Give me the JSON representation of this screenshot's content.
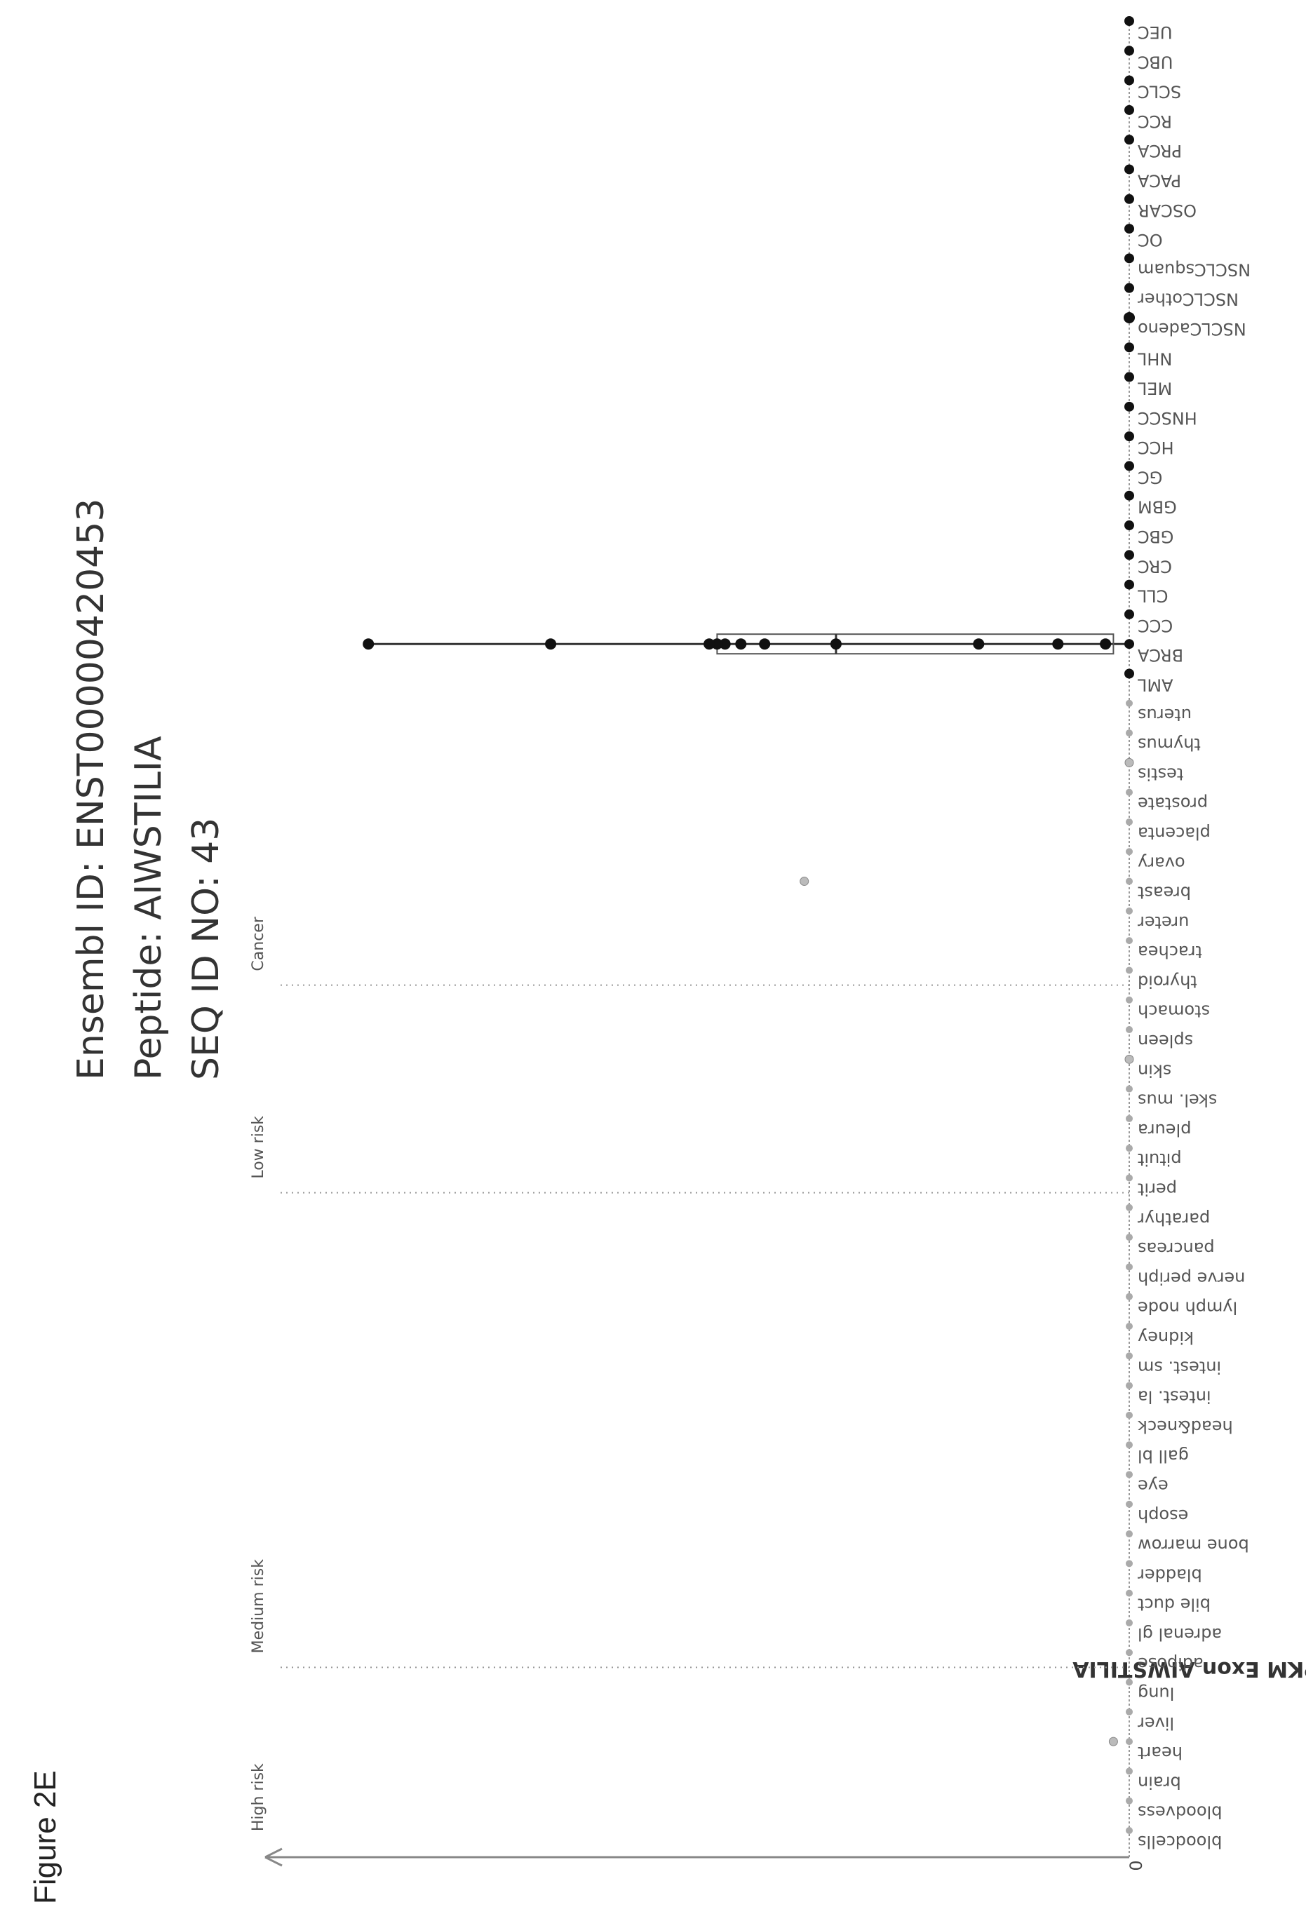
{
  "figure_label": "Figure 2E",
  "header": {
    "line1": "Ensembl ID: ENST00000420453",
    "line2": "Peptide: AIWSTILIA",
    "line3": "SEQ ID NO: 43"
  },
  "chart_data": {
    "type": "scatter",
    "ylabel": "Relative FPKM Exon AIWSTILIA",
    "y_origin_label": "0",
    "regions": [
      {
        "label": "High risk",
        "categories": 6
      },
      {
        "label": "Medium risk",
        "categories": 16
      },
      {
        "label": "Low risk",
        "categories": 7
      },
      {
        "label": "Cancer",
        "categories": 20
      }
    ],
    "categories": [
      "bloodcells",
      "bloodvess",
      "brain",
      "heart",
      "liver",
      "lung",
      "adipose",
      "adrenal gl",
      "bile duct",
      "bladder",
      "bone marrow",
      "esoph",
      "eye",
      "gall bl",
      "head&neck",
      "intest. la",
      "intest. sm",
      "kidney",
      "lymph node",
      "nerve periph",
      "pancreas",
      "parathyr",
      "perit",
      "pituit",
      "pleura",
      "skel. mus",
      "skin",
      "spleen",
      "stomach",
      "thyroid",
      "trachea",
      "ureter",
      "breast",
      "ovary",
      "placenta",
      "prostate",
      "testis",
      "thymus",
      "uterus",
      "AML",
      "BRCA",
      "CCC",
      "CLL",
      "CRC",
      "GBC",
      "GBM",
      "GC",
      "HCC",
      "HNSCC",
      "MEL",
      "NHL",
      "NSCLCadeno",
      "NSCLCother",
      "NSCLCsquam",
      "OC",
      "OSCAR",
      "PACA",
      "PRCA",
      "RCC",
      "SCLC",
      "UBC",
      "UEC"
    ],
    "normal_points": [
      {
        "category": "heart",
        "value": 0.02
      },
      {
        "category": "skin",
        "value": 0.0
      },
      {
        "category": "breast",
        "value": 0.41
      },
      {
        "category": "testis",
        "value": 0.0
      }
    ],
    "cancer_points": [
      {
        "category": "BRCA",
        "values": [
          0.03,
          0.09,
          0.19,
          0.37,
          0.46,
          0.49,
          0.51,
          0.52,
          0.53,
          0.73,
          0.96
        ]
      },
      {
        "category": "NSCLCadeno",
        "values": [
          0.0
        ]
      }
    ],
    "boxplot": {
      "category": "BRCA",
      "q1": 0.02,
      "median": 0.37,
      "q3": 0.52,
      "min": 0.0,
      "max": 0.96
    }
  }
}
